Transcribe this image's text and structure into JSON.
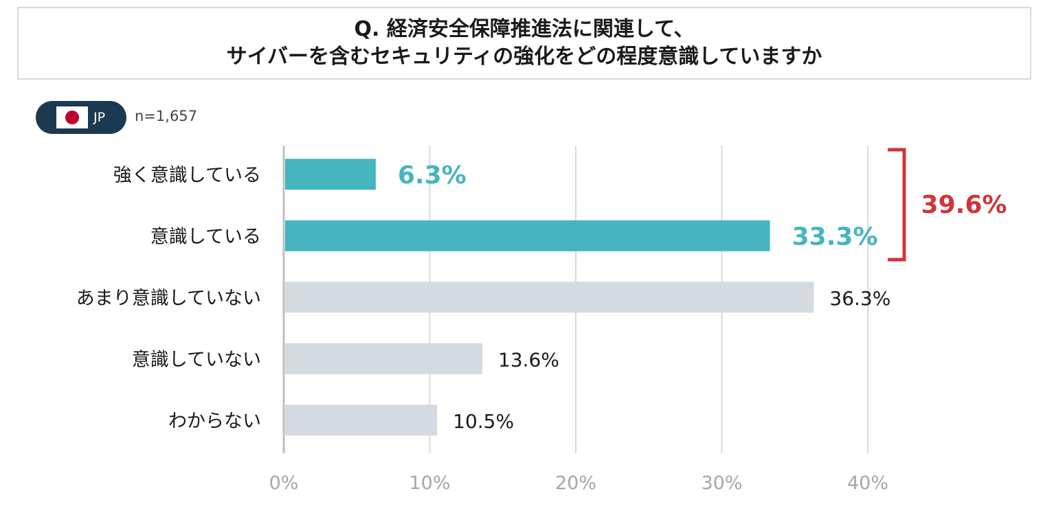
{
  "title": {
    "line1": "Q. 経済安全保障推進法に関連して、",
    "line2": "サイバーを含むセキュリティの強化をどの程度意識していますか"
  },
  "badge": {
    "label": "JP",
    "flag_icon": "japan-flag-icon"
  },
  "sample_size": "n=1,657",
  "colors": {
    "highlight": "#45b5c0",
    "neutral": "#d5dae0",
    "bracket": "#d13438",
    "grid": "#d9d9d9",
    "tick": "#a6a6a6"
  },
  "chart_data": {
    "type": "bar",
    "orientation": "horizontal",
    "categories": [
      "強く意識している",
      "意識している",
      "あまり意識していない",
      "意識していない",
      "わからない"
    ],
    "values": [
      6.3,
      33.3,
      36.3,
      13.6,
      10.5
    ],
    "value_labels": [
      "6.3%",
      "33.3%",
      "36.3%",
      "13.6%",
      "10.5%"
    ],
    "highlighted": [
      true,
      true,
      false,
      false,
      false
    ],
    "xlim": [
      0,
      40
    ],
    "xticks": [
      0,
      10,
      20,
      30,
      40
    ],
    "xtick_labels": [
      "0%",
      "10%",
      "20%",
      "30%",
      "40%"
    ],
    "grid": true,
    "bracket": {
      "covers": [
        0,
        1
      ],
      "label": "39.6%"
    }
  }
}
